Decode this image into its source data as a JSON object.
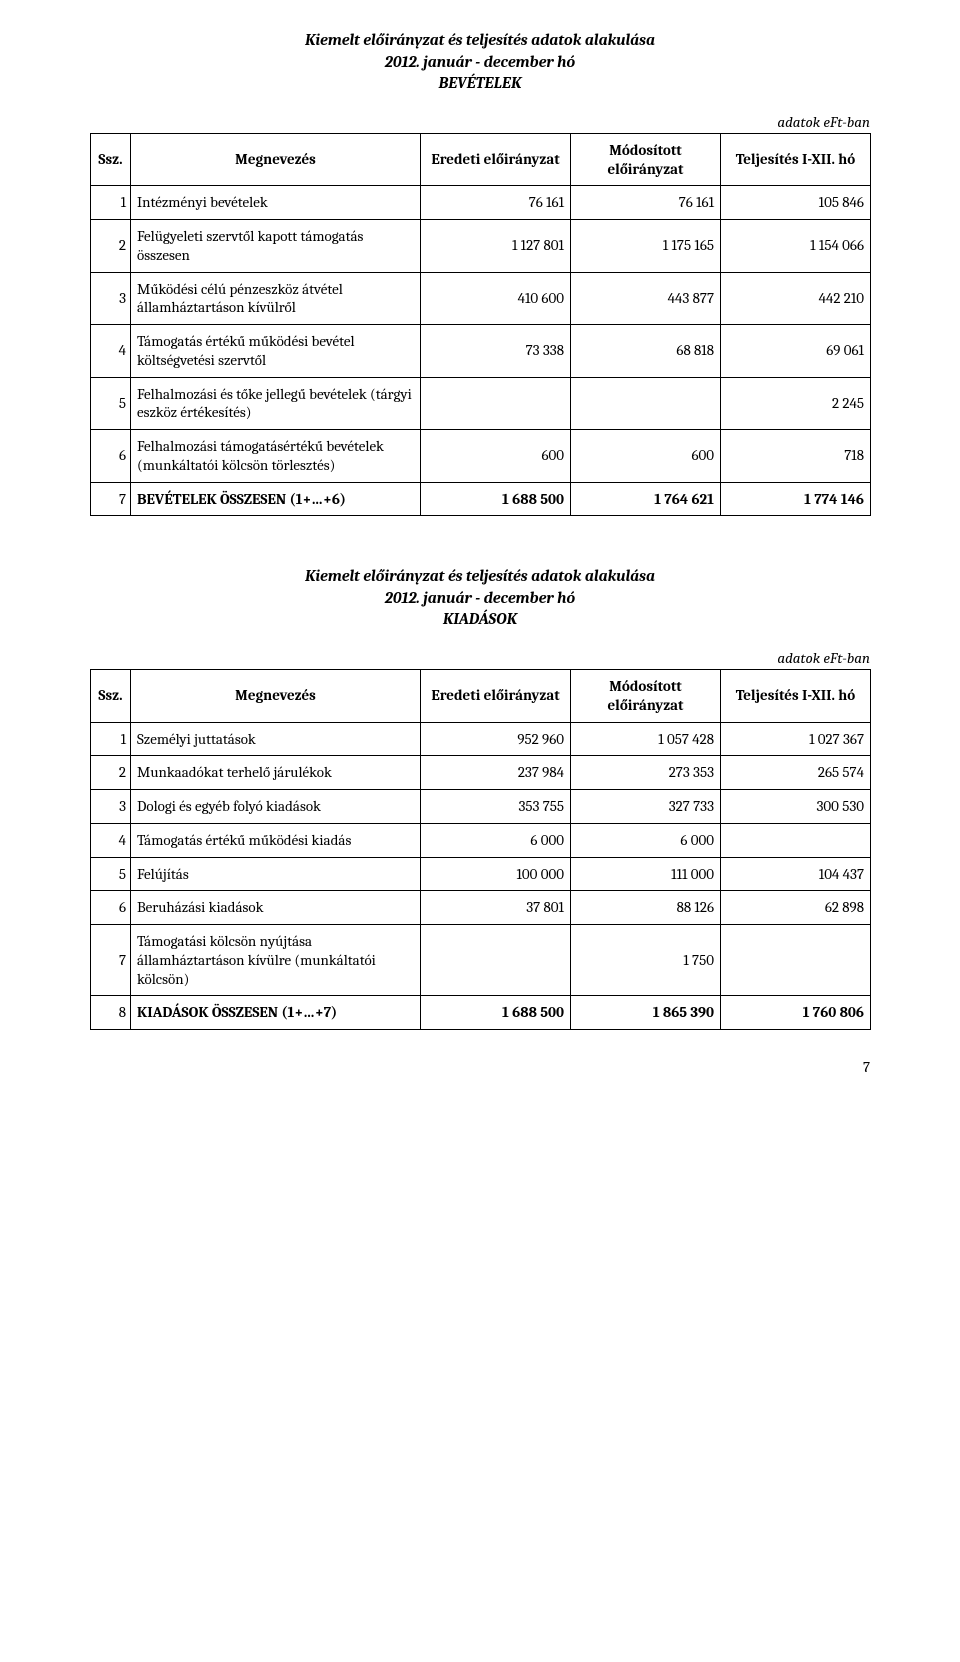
{
  "unit_label": "adatok eFt-ban",
  "page_number": "7",
  "headers": {
    "ssz": "Ssz.",
    "name": "Megnevezés",
    "col1": "Eredeti előirányzat",
    "col2": "Módosított előirányzat",
    "col3": "Teljesítés I-XII. hó"
  },
  "section1": {
    "title_line1": "Kiemelt előirányzat és teljesítés adatok alakulása",
    "title_line2": "2012. január - december hó",
    "title_line3": "BEVÉTELEK",
    "rows": [
      {
        "ssz": "1",
        "name": "Intézményi bevételek",
        "c1": "76 161",
        "c2": "76 161",
        "c3": "105 846",
        "total": false
      },
      {
        "ssz": "2",
        "name": "Felügyeleti szervtől kapott támogatás összesen",
        "c1": "1 127 801",
        "c2": "1 175 165",
        "c3": "1 154 066",
        "total": false
      },
      {
        "ssz": "3",
        "name": "Működési célú pénzeszköz átvétel államháztartáson kívülről",
        "c1": "410 600",
        "c2": "443 877",
        "c3": "442 210",
        "total": false
      },
      {
        "ssz": "4",
        "name": "Támogatás értékű működési bevétel költségvetési szervtől",
        "c1": "73 338",
        "c2": "68 818",
        "c3": "69 061",
        "total": false
      },
      {
        "ssz": "5",
        "name": "Felhalmozási és tőke jellegű bevételek (tárgyi eszköz értékesítés)",
        "c1": "",
        "c2": "",
        "c3": "2 245",
        "total": false
      },
      {
        "ssz": "6",
        "name": "Felhalmozási támogatásértékű bevételek (munkáltatói kölcsön törlesztés)",
        "c1": "600",
        "c2": "600",
        "c3": "718",
        "total": false
      },
      {
        "ssz": "7",
        "name": "BEVÉTELEK ÖSSZESEN (1+…+6)",
        "c1": "1 688 500",
        "c2": "1 764 621",
        "c3": "1 774 146",
        "total": true
      }
    ]
  },
  "section2": {
    "title_line1": "Kiemelt előirányzat és teljesítés adatok alakulása",
    "title_line2": "2012. január -  december hó",
    "title_line3": "KIADÁSOK",
    "rows": [
      {
        "ssz": "1",
        "name": "Személyi juttatások",
        "c1": "952 960",
        "c2": "1 057 428",
        "c3": "1 027 367",
        "total": false
      },
      {
        "ssz": "2",
        "name": "Munkaadókat terhelő járulékok",
        "c1": "237 984",
        "c2": "273 353",
        "c3": "265 574",
        "total": false
      },
      {
        "ssz": "3",
        "name": "Dologi és egyéb folyó kiadások",
        "c1": "353 755",
        "c2": "327 733",
        "c3": "300 530",
        "total": false
      },
      {
        "ssz": "4",
        "name": "Támogatás értékű működési kiadás",
        "c1": "6 000",
        "c2": "6 000",
        "c3": "",
        "total": false
      },
      {
        "ssz": "5",
        "name": "Felújítás",
        "c1": "100 000",
        "c2": "111 000",
        "c3": "104 437",
        "total": false
      },
      {
        "ssz": "6",
        "name": "Beruházási kiadások",
        "c1": "37 801",
        "c2": "88 126",
        "c3": "62 898",
        "total": false
      },
      {
        "ssz": "7",
        "name": "Támogatási kölcsön nyújtása államháztartáson kívülre (munkáltatói kölcsön)",
        "c1": "",
        "c2": "1 750",
        "c3": "",
        "total": false
      },
      {
        "ssz": "8",
        "name": "KIADÁSOK ÖSSZESEN (1+…+7)",
        "c1": "1 688 500",
        "c2": "1 865 390",
        "c3": "1 760 806",
        "total": true
      }
    ]
  }
}
